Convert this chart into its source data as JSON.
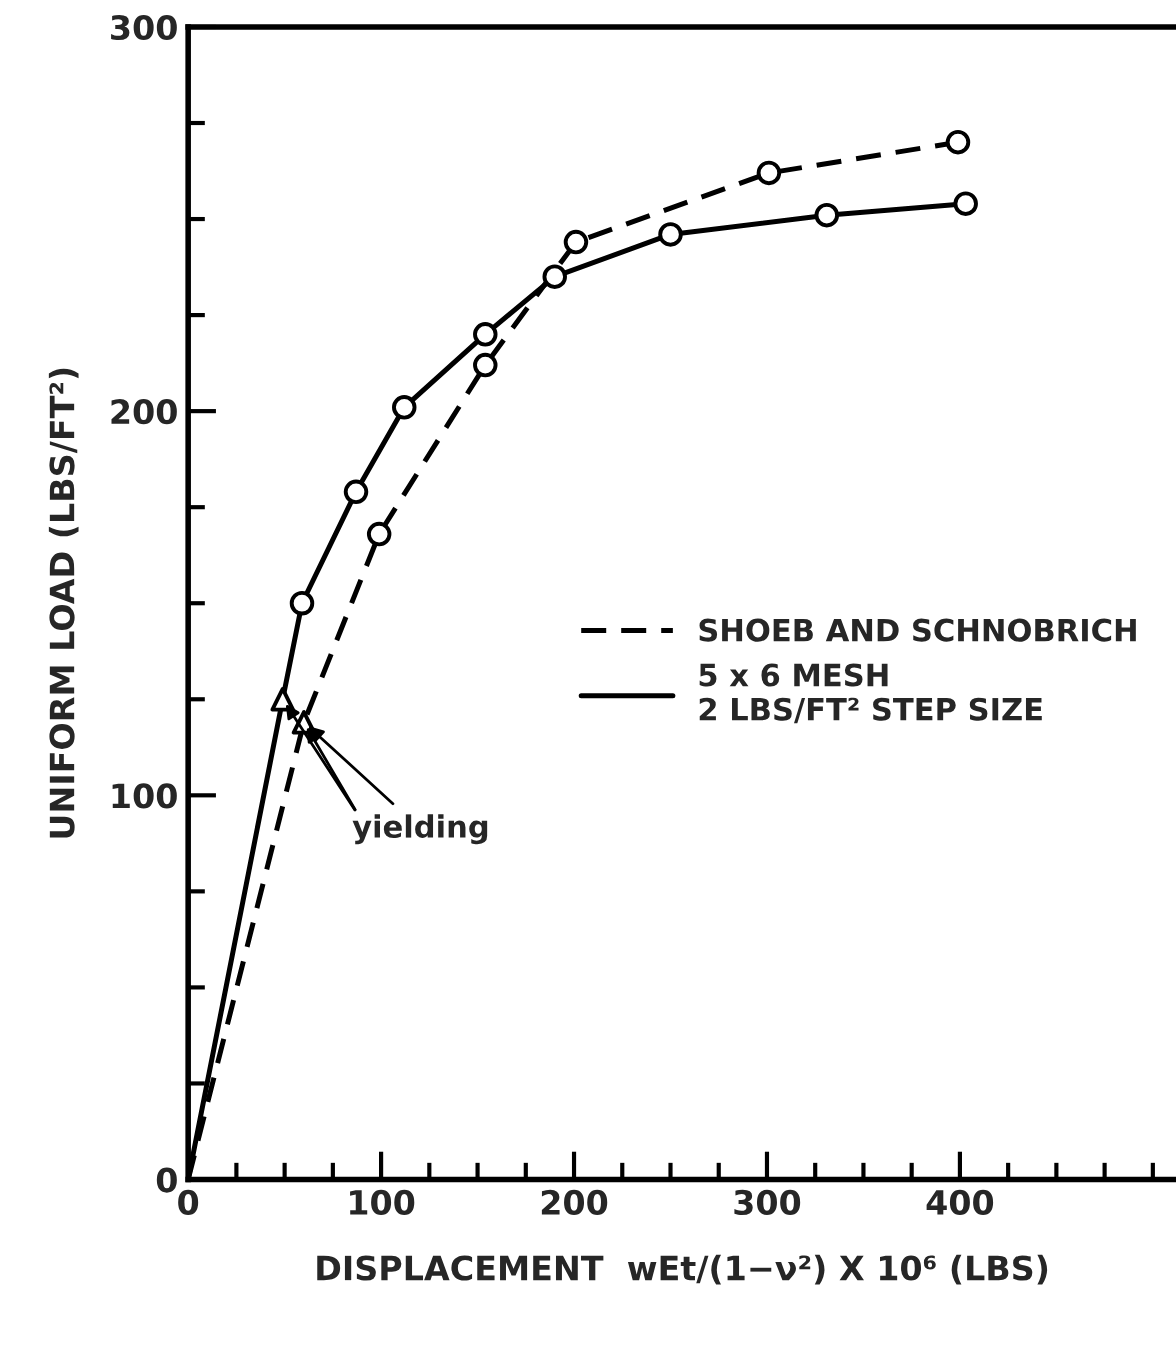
{
  "chart_data": {
    "type": "line",
    "xlabel": "DISPLACEMENT  wEt/(1−ν²) X 10⁶ (LBS)",
    "ylabel": "UNIFORM LOAD (LBS/FT²)",
    "xlim": [
      0,
      512
    ],
    "ylim": [
      0,
      300
    ],
    "xticks": [
      0,
      {
        "value": 25,
        "label": null
      },
      {
        "value": 50,
        "label": null
      },
      {
        "value": 75,
        "label": null
      },
      100,
      {
        "value": 125,
        "label": null
      },
      {
        "value": 150,
        "label": null
      },
      {
        "value": 175,
        "label": null
      },
      200,
      {
        "value": 225,
        "label": null
      },
      {
        "value": 250,
        "label": null
      },
      {
        "value": 275,
        "label": null
      },
      300,
      {
        "value": 325,
        "label": null
      },
      {
        "value": 350,
        "label": null
      },
      {
        "value": 375,
        "label": null
      },
      400,
      {
        "value": 425,
        "label": null
      },
      {
        "value": 450,
        "label": null
      },
      {
        "value": 475,
        "label": null
      },
      {
        "value": 500,
        "label": null
      }
    ],
    "yticks": [
      0,
      {
        "value": 25,
        "label": null
      },
      {
        "value": 50,
        "label": null
      },
      {
        "value": 75,
        "label": null
      },
      100,
      {
        "value": 125,
        "label": null
      },
      {
        "value": 150,
        "label": null
      },
      {
        "value": 175,
        "label": null
      },
      200,
      {
        "value": 225,
        "label": null
      },
      {
        "value": 250,
        "label": null
      },
      {
        "value": 275,
        "label": null
      },
      300
    ],
    "grid": false,
    "legend": "right",
    "series": [
      {
        "name": "SHOEB AND SCHNOBRICH",
        "line_style": "dashed",
        "marker": "none",
        "color": "#000000",
        "x": [
          0,
          60,
          99,
          154,
          201,
          301,
          399
        ],
        "values": [
          0,
          119,
          168,
          212,
          244,
          262,
          270
        ]
      },
      {
        "name": "5 x 6 MESH\n2 LBS/FT² STEP SIZE",
        "line_style": "solid",
        "marker": "none",
        "color": "#000000",
        "x": [
          0,
          49,
          59,
          87,
          112,
          154,
          190,
          250,
          331,
          403
        ],
        "values": [
          0,
          125,
          150,
          179,
          201,
          220,
          235,
          246,
          251,
          254
        ]
      },
      {
        "type": "scatter",
        "marker": "circle",
        "color": "#000000",
        "x": [
          99,
          154,
          201,
          301,
          399,
          59,
          87,
          112,
          154,
          190,
          250,
          331,
          403
        ],
        "values": [
          168,
          212,
          244,
          262,
          270,
          150,
          179,
          201,
          220,
          235,
          246,
          251,
          254
        ]
      },
      {
        "type": "scatter",
        "marker": "triangle",
        "color": "#000000",
        "x": [
          49,
          60
        ],
        "values": [
          125,
          119
        ]
      }
    ],
    "annotations": [
      {
        "text": "yielding",
        "x": 60,
        "y": 119
      }
    ]
  }
}
